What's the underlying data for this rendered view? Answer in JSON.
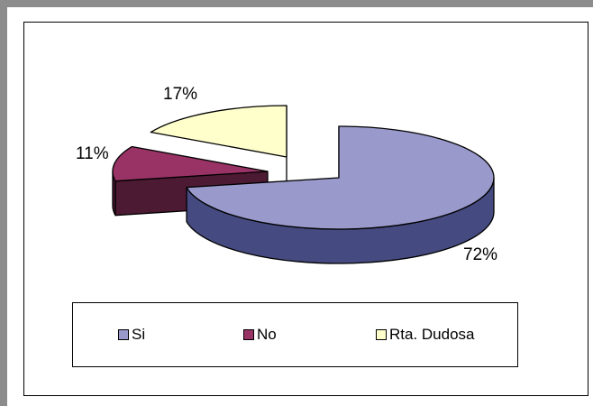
{
  "chart_data": {
    "type": "pie",
    "three_d": true,
    "categories": [
      "Si",
      "No",
      "Rta. Dudosa"
    ],
    "values": [
      72,
      11,
      17
    ],
    "labels": [
      "72%",
      "11%",
      "17%"
    ],
    "colors": {
      "Si": {
        "top": "#9999cc",
        "side": "#454b80"
      },
      "No": {
        "top": "#993366",
        "side": "#4d1a33"
      },
      "Rta. Dudosa": {
        "top": "#ffffcc",
        "side": "#808066"
      }
    },
    "legend_position": "bottom"
  },
  "legend": {
    "items": [
      {
        "label": "Si",
        "color": "#9999cc"
      },
      {
        "label": "No",
        "color": "#993366"
      },
      {
        "label": "Rta. Dudosa",
        "color": "#ffffcc"
      }
    ]
  }
}
